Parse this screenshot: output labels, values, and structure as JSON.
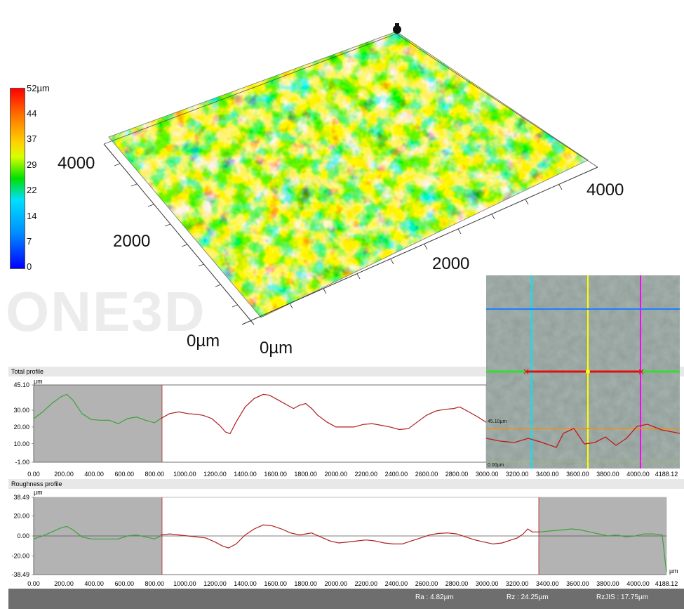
{
  "scale_bar": {
    "ticks": [
      "52µm",
      "44",
      "37",
      "29",
      "22",
      "14",
      "7",
      "0"
    ]
  },
  "axes3d": {
    "y_ticks": [
      "4000",
      "2000",
      "0µm"
    ],
    "x_ticks": [
      "4000",
      "2000",
      "0µm"
    ]
  },
  "watermark": "ONE3D",
  "total_profile": {
    "title": "Total profile",
    "unit": "µm",
    "y_ticks": [
      "45.10",
      "30.00",
      "20.00",
      "10.00",
      "-1.00"
    ],
    "x_ticks": [
      "0.00",
      "200.00",
      "400.00",
      "600.00",
      "800.00",
      "1000.00",
      "1200.00",
      "1400.00",
      "1600.00",
      "1800.00",
      "2000.00",
      "2200.00",
      "2400.00",
      "2600.00",
      "2800.00",
      "3000.00",
      "3200.00",
      "3400.00",
      "3600.00",
      "3800.00",
      "4000.00",
      "4188.12"
    ]
  },
  "roughness_profile": {
    "title": "Roughness profile",
    "unit": "µm",
    "y_ticks": [
      "38.49",
      "20.00",
      "0.00",
      "-20.00",
      "-38.49"
    ],
    "x_ticks": [
      "0.00",
      "200.00",
      "400.00",
      "600.00",
      "800.00",
      "1000.00",
      "1200.00",
      "1400.00",
      "1600.00",
      "1800.00",
      "2000.00",
      "2200.00",
      "2400.00",
      "2600.00",
      "2800.00",
      "3000.00",
      "3200.00",
      "3400.00",
      "3600.00",
      "3800.00",
      "4000.00",
      "4188.12"
    ],
    "x_unit": "µm"
  },
  "inset": {
    "label_top": "45.10µm",
    "label_bottom": "0.00µm"
  },
  "status": {
    "ra": "Ra : 4.82µm",
    "rz": "Rz : 24.25µm",
    "rzjis": "RzJIS : 17.75µm"
  },
  "chart_data": [
    {
      "type": "line",
      "title": "Total profile",
      "ylabel": "µm",
      "xlim": [
        0,
        4188.12
      ],
      "ylim": [
        -1.0,
        45.1
      ],
      "series": [
        {
          "x": [
            0,
            60,
            120,
            180,
            220,
            260,
            320,
            380,
            440,
            500,
            560,
            620,
            680,
            740,
            800,
            840
          ],
          "values": [
            25,
            29,
            34,
            38,
            39.5,
            36,
            28,
            24.5,
            24,
            24,
            22,
            25,
            26,
            24,
            22.5,
            25
          ]
        },
        {
          "x": [
            840,
            900,
            960,
            1020,
            1080,
            1120,
            1180,
            1230,
            1270,
            1300,
            1340,
            1400,
            1460,
            1520,
            1560,
            1620,
            1680,
            1720,
            1760,
            1800,
            1840,
            1880,
            1940,
            2000,
            2060,
            2120,
            2180,
            2240,
            2300,
            2360,
            2420,
            2480,
            2540,
            2600,
            2660,
            2720,
            2780,
            2820,
            2880,
            2940,
            3000
          ],
          "values": [
            25,
            28,
            29,
            28,
            27.5,
            27,
            25,
            21,
            17,
            16,
            23,
            32,
            37,
            39.5,
            39,
            36,
            33,
            31,
            33,
            34,
            31,
            27,
            23,
            20,
            20,
            20,
            21.5,
            22,
            21,
            20,
            18.5,
            19,
            23,
            27,
            29.5,
            30.5,
            31,
            32,
            29,
            26,
            22.5
          ]
        }
      ]
    },
    {
      "type": "line",
      "title": "Roughness profile",
      "xlabel": "µm",
      "ylabel": "µm",
      "xlim": [
        0,
        4188.12
      ],
      "ylim": [
        -38.49,
        38.49
      ],
      "series": [
        {
          "x": [
            0,
            60,
            120,
            180,
            220,
            260,
            320,
            380,
            440,
            500,
            560,
            620,
            680,
            740,
            800,
            840
          ],
          "values": [
            -3,
            0,
            4,
            8,
            9.5,
            6,
            -1,
            -3,
            -3,
            -3,
            -3,
            0,
            1,
            -1,
            -3,
            0
          ]
        },
        {
          "x": [
            840,
            900,
            960,
            1020,
            1080,
            1140,
            1200,
            1250,
            1290,
            1340,
            1400,
            1460,
            1520,
            1580,
            1640,
            1700,
            1760,
            1800,
            1840,
            1900,
            1960,
            2020,
            2080,
            2140,
            2200,
            2260,
            2320,
            2380,
            2440,
            2500,
            2560,
            2620,
            2680,
            2740,
            2800,
            2860,
            2920,
            2980,
            3040,
            3100,
            3160,
            3200,
            3240,
            3270,
            3300,
            3350
          ],
          "values": [
            1,
            2,
            1,
            0,
            -1,
            -2,
            -6,
            -10,
            -12,
            -8,
            1,
            7,
            11,
            10,
            7,
            3,
            1,
            2,
            3,
            -1,
            -5,
            -7,
            -6,
            -5,
            -4,
            -5,
            -7,
            -8,
            -8,
            -5,
            -2,
            1,
            2.5,
            3,
            2,
            -1,
            -4,
            -6,
            -8,
            -7,
            -4,
            -2,
            2,
            7,
            4,
            4
          ]
        },
        {
          "x": [
            3350,
            3420,
            3500,
            3560,
            3620,
            3680,
            3740,
            3800,
            3860,
            3920,
            3980,
            4040,
            4100,
            4160,
            4188.12
          ],
          "values": [
            4,
            5,
            6,
            7,
            6,
            4,
            2,
            0,
            1,
            -1,
            0,
            2,
            2,
            1,
            -36
          ]
        }
      ]
    }
  ]
}
